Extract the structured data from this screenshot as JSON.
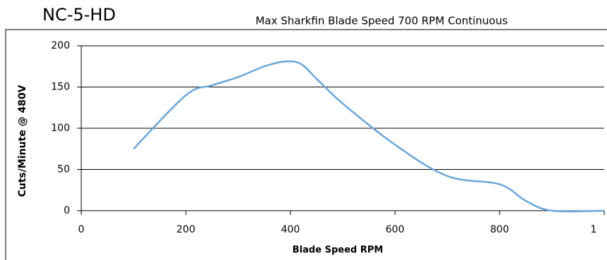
{
  "chart_data": {
    "type": "line",
    "title": "NC-5-HD",
    "subtitle": "Max Sharkfin Blade Speed 700 RPM Continuous",
    "x_label": "Blade Speed RPM",
    "y_label": "Cuts/Minute @ 480V",
    "x": [
      100,
      200,
      250,
      300,
      350,
      390,
      420,
      450,
      500,
      600,
      700,
      800,
      850,
      900,
      1000
    ],
    "series": [
      {
        "name": "Cuts/Minute",
        "color": "#6aa6d8",
        "values": [
          75,
          140,
          152,
          162,
          175,
          181,
          178,
          160,
          130,
          80,
          42,
          32,
          12,
          0,
          0
        ]
      }
    ],
    "xlim": [
      0,
      1000
    ],
    "xticks": [
      0,
      200,
      400,
      600,
      800,
      {
        "value": 1000,
        "label": "1"
      }
    ],
    "ylim": [
      0,
      200
    ],
    "yticks": [
      0,
      50,
      100,
      150,
      200
    ],
    "grid": true
  }
}
